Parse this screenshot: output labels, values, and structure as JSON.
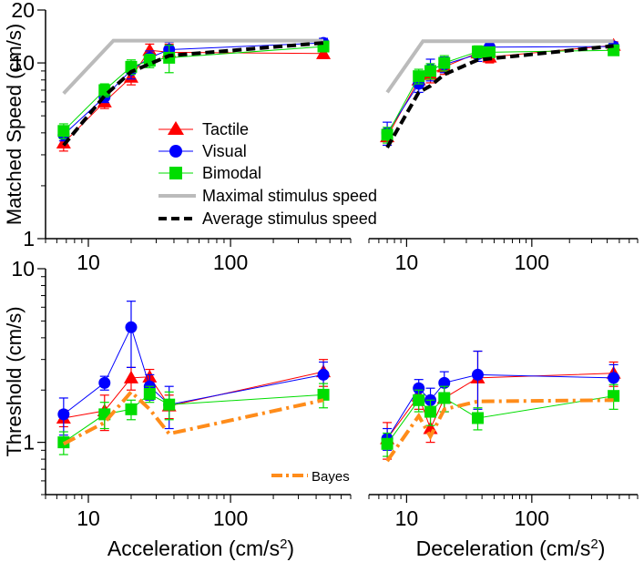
{
  "chart_data": [
    {
      "panel": "top-left",
      "type": "line",
      "xscale": "log",
      "yscale": "log",
      "xlim": [
        5,
        700
      ],
      "ylim": [
        1,
        20
      ],
      "xticks": [
        "10",
        "100"
      ],
      "yticks": [
        "1",
        "10",
        "20"
      ],
      "ylabel": "Matched Speed (cm/s)",
      "xlabel": "",
      "series": [
        {
          "name": "Tactile",
          "x": [
            6.7,
            13,
            20,
            27,
            37,
            450
          ],
          "y": [
            3.5,
            6.0,
            8.3,
            11.8,
            11.5,
            11.3
          ],
          "err": [
            0.35,
            0.5,
            0.8,
            1.0,
            1.3,
            0.7
          ]
        },
        {
          "name": "Visual",
          "x": [
            6.7,
            13,
            20,
            27,
            37,
            450
          ],
          "y": [
            3.9,
            6.4,
            9.1,
            10.7,
            11.9,
            13.0
          ],
          "err": [
            0.3,
            0.45,
            1.0,
            1.0,
            1.2,
            0.8
          ]
        },
        {
          "name": "Bimodal",
          "x": [
            6.7,
            13,
            20,
            27,
            37,
            450
          ],
          "y": [
            4.1,
            7.0,
            9.5,
            10.3,
            10.7,
            12.4
          ],
          "err": [
            0.4,
            0.6,
            0.9,
            0.9,
            1.9,
            0.8
          ]
        },
        {
          "name": "Maximal stimulus speed",
          "x": [
            6.7,
            15,
            37,
            450
          ],
          "y": [
            6.7,
            13.4,
            13.4,
            13.4
          ]
        },
        {
          "name": "Average stimulus speed",
          "x": [
            6.7,
            13,
            20,
            37,
            450
          ],
          "y": [
            3.4,
            6.5,
            8.9,
            11.0,
            13.0
          ]
        }
      ]
    },
    {
      "panel": "top-right",
      "type": "line",
      "xscale": "log",
      "yscale": "log",
      "xlim": [
        5,
        700
      ],
      "ylim": [
        1,
        20
      ],
      "xticks": [
        "10",
        "100"
      ],
      "series": [
        {
          "name": "Tactile",
          "x": [
            7,
            12.5,
            15.5,
            20,
            37,
            46,
            450
          ],
          "y": [
            3.8,
            8.0,
            8.6,
            9.5,
            11.4,
            10.8,
            12.6
          ],
          "err": [
            0.4,
            0.8,
            0.9,
            0.9,
            0.8,
            0.8,
            0.6
          ]
        },
        {
          "name": "Visual",
          "x": [
            7,
            12.5,
            15.5,
            20,
            37,
            46,
            450
          ],
          "y": [
            4.0,
            7.6,
            9.2,
            9.8,
            11.2,
            12.3,
            12.4
          ],
          "err": [
            0.6,
            0.8,
            1.3,
            1.0,
            1.0,
            0.8,
            0.7
          ]
        },
        {
          "name": "Bimodal",
          "x": [
            7,
            12.5,
            15.5,
            20,
            37,
            46,
            450
          ],
          "y": [
            3.9,
            8.4,
            9.0,
            10.0,
            11.6,
            11.5,
            11.8
          ],
          "err": [
            0.4,
            0.8,
            0.9,
            1.0,
            0.9,
            0.8,
            0.7
          ]
        },
        {
          "name": "Maximal stimulus speed",
          "x": [
            7,
            13.5,
            46,
            450
          ],
          "y": [
            6.8,
            13.3,
            13.3,
            13.3
          ]
        },
        {
          "name": "Average stimulus speed",
          "x": [
            7,
            12.5,
            15.5,
            20,
            37,
            450
          ],
          "y": [
            3.3,
            6.8,
            7.4,
            8.6,
            10.4,
            12.5
          ]
        }
      ]
    },
    {
      "panel": "bottom-left",
      "type": "line",
      "xscale": "log",
      "yscale": "log",
      "xlim": [
        5,
        700
      ],
      "ylim": [
        0.5,
        10
      ],
      "xticks": [
        "10",
        "100"
      ],
      "yticks": [
        "1",
        "10"
      ],
      "ylabel": "Threshold (cm/s)",
      "xlabel": "Acceleration (cm/s",
      "xlabel_sup": "2",
      "xlabel_end": ")",
      "series": [
        {
          "name": "Tactile",
          "x": [
            6.7,
            13,
            20,
            27,
            37,
            450
          ],
          "y": [
            1.38,
            1.52,
            2.35,
            2.38,
            1.62,
            2.55
          ],
          "err": [
            0.15,
            0.35,
            0.35,
            0.25,
            0.25,
            0.45
          ]
        },
        {
          "name": "Visual",
          "x": [
            6.7,
            13,
            20,
            27,
            37,
            450
          ],
          "y": [
            1.45,
            2.2,
            4.6,
            2.1,
            1.65,
            2.45
          ],
          "err": [
            0.35,
            0.2,
            1.9,
            0.35,
            0.45,
            0.45
          ]
        },
        {
          "name": "Bimodal",
          "x": [
            6.7,
            13,
            20,
            27,
            37,
            450
          ],
          "y": [
            1.0,
            1.45,
            1.55,
            1.9,
            1.65,
            1.88
          ],
          "err": [
            0.15,
            0.25,
            0.2,
            0.2,
            0.3,
            0.3
          ]
        },
        {
          "name": "Bayes",
          "x": [
            6.7,
            13,
            20,
            27,
            37,
            450
          ],
          "y": [
            0.98,
            1.3,
            1.95,
            1.55,
            1.12,
            1.75
          ]
        }
      ]
    },
    {
      "panel": "bottom-right",
      "type": "line",
      "xscale": "log",
      "yscale": "log",
      "xlim": [
        5,
        700
      ],
      "ylim": [
        0.5,
        10
      ],
      "xticks": [
        "10",
        "100"
      ],
      "xlabel": "Deceleration (cm/s",
      "xlabel_sup": "2",
      "xlabel_end": ")",
      "series": [
        {
          "name": "Tactile",
          "x": [
            7,
            12.5,
            15.5,
            20,
            37,
            450
          ],
          "y": [
            1.05,
            1.85,
            1.2,
            1.8,
            2.35,
            2.5
          ],
          "err": [
            0.25,
            0.3,
            0.2,
            0.3,
            1.0,
            0.4
          ]
        },
        {
          "name": "Visual",
          "x": [
            7,
            12.5,
            15.5,
            20,
            37,
            450
          ],
          "y": [
            1.05,
            2.05,
            1.75,
            2.2,
            2.45,
            2.35
          ],
          "err": [
            0.15,
            0.25,
            0.3,
            0.35,
            0.9,
            0.45
          ]
        },
        {
          "name": "Bimodal",
          "x": [
            7,
            12.5,
            15.5,
            20,
            37,
            450
          ],
          "y": [
            0.98,
            1.75,
            1.5,
            1.8,
            1.38,
            1.85
          ],
          "err": [
            0.15,
            0.25,
            0.25,
            0.3,
            0.2,
            0.3
          ]
        },
        {
          "name": "Bayes",
          "x": [
            7,
            12.5,
            15.5,
            20,
            37,
            450
          ],
          "y": [
            0.78,
            1.42,
            1.08,
            1.55,
            1.72,
            1.75
          ]
        }
      ]
    }
  ],
  "legend": {
    "tactile": "Tactile",
    "visual": "Visual",
    "bimodal": "Bimodal",
    "maximal": "Maximal stimulus speed",
    "average": "Average stimulus speed",
    "bayes": "Bayes"
  },
  "colors": {
    "tactile": "#ff0000",
    "visual": "#0000ff",
    "bimodal": "#00dd00",
    "maximal": "#bbbbbb",
    "average": "#000000",
    "bayes": "#ff8c1a"
  }
}
